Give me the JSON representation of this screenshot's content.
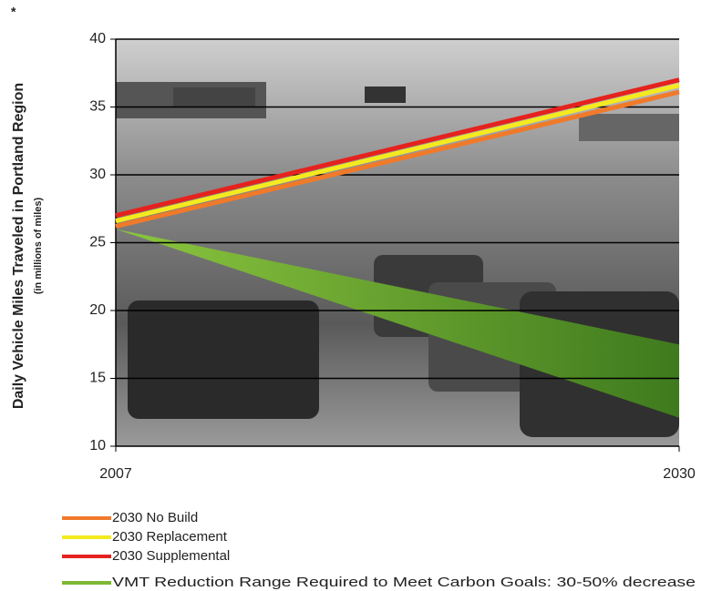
{
  "chart_data": {
    "type": "line",
    "ylabel": "Daily Vehicle Miles Traveled in Portland Region",
    "ylabel_note": "*",
    "ylabel_sub": "(in millions of miles)",
    "x": [
      2007,
      2030
    ],
    "xlim": [
      2007,
      2030
    ],
    "xticks": [
      2007,
      2030
    ],
    "ylim": [
      10,
      40
    ],
    "yticks": [
      10,
      15,
      20,
      25,
      30,
      35,
      40
    ],
    "grid": true,
    "series": [
      {
        "name": "2030 No Build",
        "color": "#f07a2a",
        "values": [
          26.2,
          36.1
        ]
      },
      {
        "name": "2030 Replacement",
        "color": "#f5ea1e",
        "values": [
          26.6,
          36.6
        ]
      },
      {
        "name": "2030 Supplemental",
        "color": "#e5221e",
        "values": [
          27.0,
          37.0
        ]
      }
    ],
    "range": {
      "name": "VMT Reduction Range Required to Meet Carbon Goals: 30-50% decrease",
      "color": "#7cb832",
      "upper": [
        26,
        17.5
      ],
      "lower": [
        26,
        12.1
      ]
    }
  }
}
